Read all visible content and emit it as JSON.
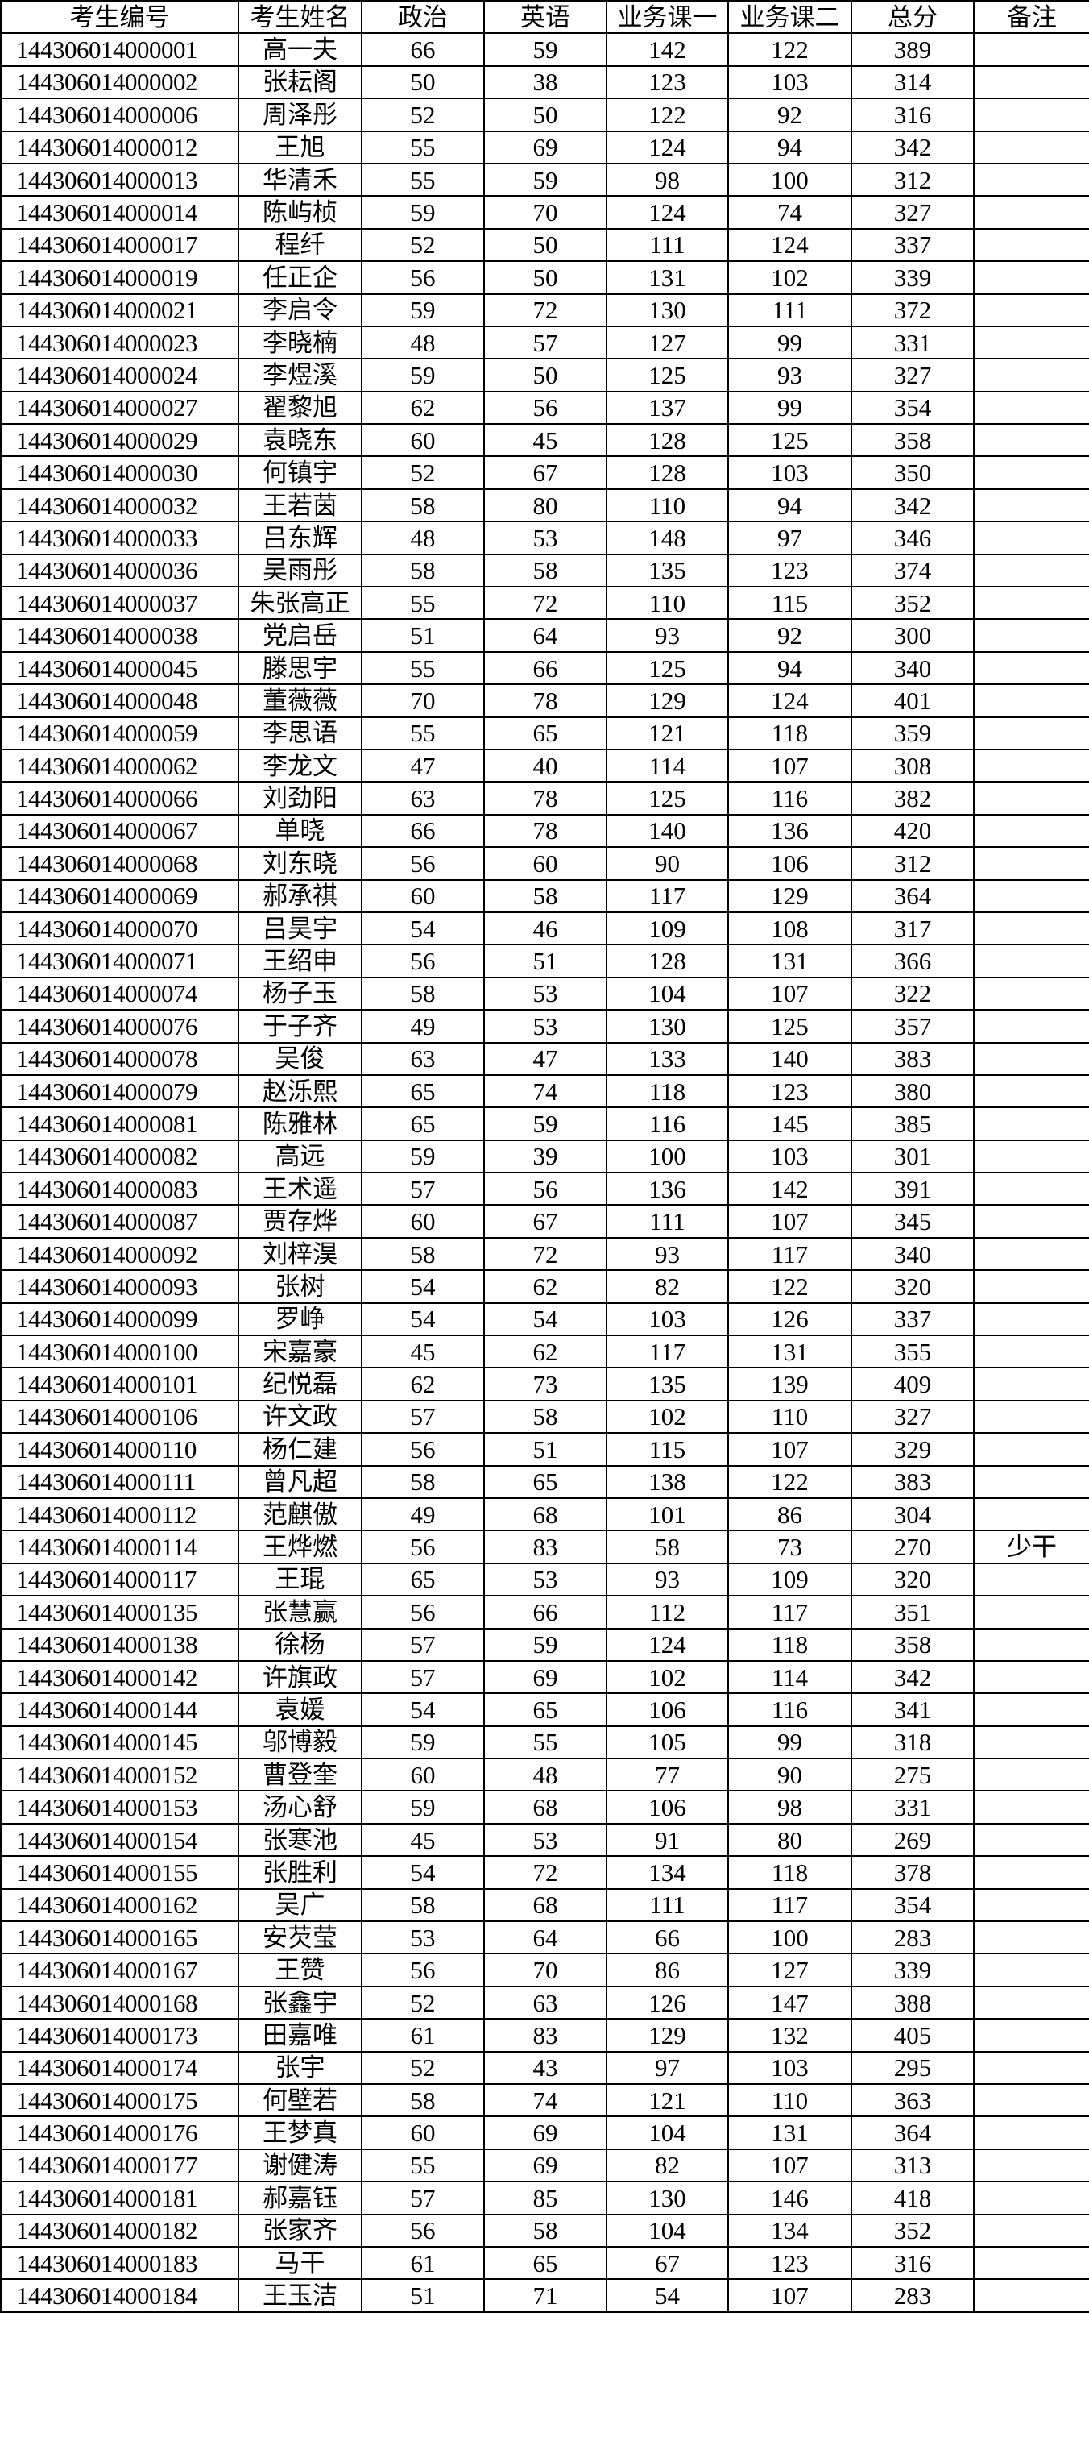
{
  "headers": [
    "考生编号",
    "考生姓名",
    "政治",
    "英语",
    "业务课一",
    "业务课二",
    "总分",
    "备注"
  ],
  "rows": [
    [
      "144306014000001",
      "高一夫",
      "66",
      "59",
      "142",
      "122",
      "389",
      ""
    ],
    [
      "144306014000002",
      "张耘阁",
      "50",
      "38",
      "123",
      "103",
      "314",
      ""
    ],
    [
      "144306014000006",
      "周泽彤",
      "52",
      "50",
      "122",
      "92",
      "316",
      ""
    ],
    [
      "144306014000012",
      "王旭",
      "55",
      "69",
      "124",
      "94",
      "342",
      ""
    ],
    [
      "144306014000013",
      "华清禾",
      "55",
      "59",
      "98",
      "100",
      "312",
      ""
    ],
    [
      "144306014000014",
      "陈屿桢",
      "59",
      "70",
      "124",
      "74",
      "327",
      ""
    ],
    [
      "144306014000017",
      "程纤",
      "52",
      "50",
      "111",
      "124",
      "337",
      ""
    ],
    [
      "144306014000019",
      "任正企",
      "56",
      "50",
      "131",
      "102",
      "339",
      ""
    ],
    [
      "144306014000021",
      "李启令",
      "59",
      "72",
      "130",
      "111",
      "372",
      ""
    ],
    [
      "144306014000023",
      "李晓楠",
      "48",
      "57",
      "127",
      "99",
      "331",
      ""
    ],
    [
      "144306014000024",
      "李煜溪",
      "59",
      "50",
      "125",
      "93",
      "327",
      ""
    ],
    [
      "144306014000027",
      "翟黎旭",
      "62",
      "56",
      "137",
      "99",
      "354",
      ""
    ],
    [
      "144306014000029",
      "袁晓东",
      "60",
      "45",
      "128",
      "125",
      "358",
      ""
    ],
    [
      "144306014000030",
      "何镇宇",
      "52",
      "67",
      "128",
      "103",
      "350",
      ""
    ],
    [
      "144306014000032",
      "王若茵",
      "58",
      "80",
      "110",
      "94",
      "342",
      ""
    ],
    [
      "144306014000033",
      "吕东辉",
      "48",
      "53",
      "148",
      "97",
      "346",
      ""
    ],
    [
      "144306014000036",
      "吴雨彤",
      "58",
      "58",
      "135",
      "123",
      "374",
      ""
    ],
    [
      "144306014000037",
      "朱张高正",
      "55",
      "72",
      "110",
      "115",
      "352",
      ""
    ],
    [
      "144306014000038",
      "党启岳",
      "51",
      "64",
      "93",
      "92",
      "300",
      ""
    ],
    [
      "144306014000045",
      "滕思宇",
      "55",
      "66",
      "125",
      "94",
      "340",
      ""
    ],
    [
      "144306014000048",
      "董薇薇",
      "70",
      "78",
      "129",
      "124",
      "401",
      ""
    ],
    [
      "144306014000059",
      "李思语",
      "55",
      "65",
      "121",
      "118",
      "359",
      ""
    ],
    [
      "144306014000062",
      "李龙文",
      "47",
      "40",
      "114",
      "107",
      "308",
      ""
    ],
    [
      "144306014000066",
      "刘劲阳",
      "63",
      "78",
      "125",
      "116",
      "382",
      ""
    ],
    [
      "144306014000067",
      "单晓",
      "66",
      "78",
      "140",
      "136",
      "420",
      ""
    ],
    [
      "144306014000068",
      "刘东晓",
      "56",
      "60",
      "90",
      "106",
      "312",
      ""
    ],
    [
      "144306014000069",
      "郝承祺",
      "60",
      "58",
      "117",
      "129",
      "364",
      ""
    ],
    [
      "144306014000070",
      "吕昊宇",
      "54",
      "46",
      "109",
      "108",
      "317",
      ""
    ],
    [
      "144306014000071",
      "王绍申",
      "56",
      "51",
      "128",
      "131",
      "366",
      ""
    ],
    [
      "144306014000074",
      "杨子玉",
      "58",
      "53",
      "104",
      "107",
      "322",
      ""
    ],
    [
      "144306014000076",
      "于子齐",
      "49",
      "53",
      "130",
      "125",
      "357",
      ""
    ],
    [
      "144306014000078",
      "吴俊",
      "63",
      "47",
      "133",
      "140",
      "383",
      ""
    ],
    [
      "144306014000079",
      "赵泺熙",
      "65",
      "74",
      "118",
      "123",
      "380",
      ""
    ],
    [
      "144306014000081",
      "陈雅林",
      "65",
      "59",
      "116",
      "145",
      "385",
      ""
    ],
    [
      "144306014000082",
      "高远",
      "59",
      "39",
      "100",
      "103",
      "301",
      ""
    ],
    [
      "144306014000083",
      "王术遥",
      "57",
      "56",
      "136",
      "142",
      "391",
      ""
    ],
    [
      "144306014000087",
      "贾存烨",
      "60",
      "67",
      "111",
      "107",
      "345",
      ""
    ],
    [
      "144306014000092",
      "刘梓淏",
      "58",
      "72",
      "93",
      "117",
      "340",
      ""
    ],
    [
      "144306014000093",
      "张树",
      "54",
      "62",
      "82",
      "122",
      "320",
      ""
    ],
    [
      "144306014000099",
      "罗峥",
      "54",
      "54",
      "103",
      "126",
      "337",
      ""
    ],
    [
      "144306014000100",
      "宋嘉豪",
      "45",
      "62",
      "117",
      "131",
      "355",
      ""
    ],
    [
      "144306014000101",
      "纪悦磊",
      "62",
      "73",
      "135",
      "139",
      "409",
      ""
    ],
    [
      "144306014000106",
      "许文政",
      "57",
      "58",
      "102",
      "110",
      "327",
      ""
    ],
    [
      "144306014000110",
      "杨仁建",
      "56",
      "51",
      "115",
      "107",
      "329",
      ""
    ],
    [
      "144306014000111",
      "曾凡超",
      "58",
      "65",
      "138",
      "122",
      "383",
      ""
    ],
    [
      "144306014000112",
      "范麒傲",
      "49",
      "68",
      "101",
      "86",
      "304",
      ""
    ],
    [
      "144306014000114",
      "王烨燃",
      "56",
      "83",
      "58",
      "73",
      "270",
      "少干"
    ],
    [
      "144306014000117",
      "王琨",
      "65",
      "53",
      "93",
      "109",
      "320",
      ""
    ],
    [
      "144306014000135",
      "张慧赢",
      "56",
      "66",
      "112",
      "117",
      "351",
      ""
    ],
    [
      "144306014000138",
      "徐杨",
      "57",
      "59",
      "124",
      "118",
      "358",
      ""
    ],
    [
      "144306014000142",
      "许旗政",
      "57",
      "69",
      "102",
      "114",
      "342",
      ""
    ],
    [
      "144306014000144",
      "袁媛",
      "54",
      "65",
      "106",
      "116",
      "341",
      ""
    ],
    [
      "144306014000145",
      "邬博毅",
      "59",
      "55",
      "105",
      "99",
      "318",
      ""
    ],
    [
      "144306014000152",
      "曹登奎",
      "60",
      "48",
      "77",
      "90",
      "275",
      ""
    ],
    [
      "144306014000153",
      "汤心舒",
      "59",
      "68",
      "106",
      "98",
      "331",
      ""
    ],
    [
      "144306014000154",
      "张寒池",
      "45",
      "53",
      "91",
      "80",
      "269",
      ""
    ],
    [
      "144306014000155",
      "张胜利",
      "54",
      "72",
      "134",
      "118",
      "378",
      ""
    ],
    [
      "144306014000162",
      "吴广",
      "58",
      "68",
      "111",
      "117",
      "354",
      ""
    ],
    [
      "144306014000165",
      "安芡莹",
      "53",
      "64",
      "66",
      "100",
      "283",
      ""
    ],
    [
      "144306014000167",
      "王赞",
      "56",
      "70",
      "86",
      "127",
      "339",
      ""
    ],
    [
      "144306014000168",
      "张鑫宇",
      "52",
      "63",
      "126",
      "147",
      "388",
      ""
    ],
    [
      "144306014000173",
      "田嘉唯",
      "61",
      "83",
      "129",
      "132",
      "405",
      ""
    ],
    [
      "144306014000174",
      "张宇",
      "52",
      "43",
      "97",
      "103",
      "295",
      ""
    ],
    [
      "144306014000175",
      "何壁若",
      "58",
      "74",
      "121",
      "110",
      "363",
      ""
    ],
    [
      "144306014000176",
      "王梦真",
      "60",
      "69",
      "104",
      "131",
      "364",
      ""
    ],
    [
      "144306014000177",
      "谢健涛",
      "55",
      "69",
      "82",
      "107",
      "313",
      ""
    ],
    [
      "144306014000181",
      "郝嘉钰",
      "57",
      "85",
      "130",
      "146",
      "418",
      ""
    ],
    [
      "144306014000182",
      "张家齐",
      "56",
      "58",
      "104",
      "134",
      "352",
      ""
    ],
    [
      "144306014000183",
      "马干",
      "61",
      "65",
      "67",
      "123",
      "316",
      ""
    ],
    [
      "144306014000184",
      "王玉洁",
      "51",
      "71",
      "54",
      "107",
      "283",
      ""
    ]
  ]
}
